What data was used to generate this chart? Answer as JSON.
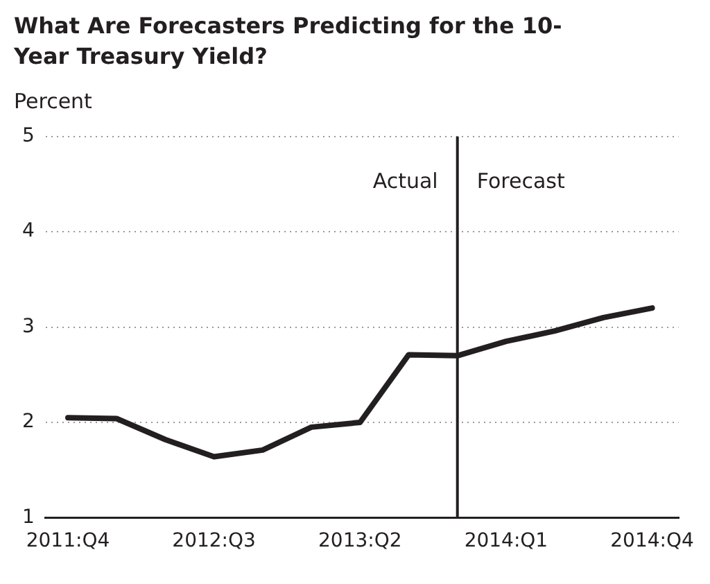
{
  "chart_data": {
    "type": "line",
    "title": "What Are Forecasters Predicting for the 10-Year Treasury Yield?",
    "ylabel": "Percent",
    "x": [
      "2011-10",
      "2012-01",
      "2012-04",
      "2012-07",
      "2012-10",
      "2013-01",
      "2013-04",
      "2013-07",
      "2013-10",
      "2014-01",
      "2014-04",
      "2014-07",
      "2014-10"
    ],
    "series": [
      {
        "color": "#231f20",
        "values": [
          2.05,
          2.04,
          1.82,
          1.64,
          1.71,
          1.95,
          2.0,
          2.71,
          2.7,
          2.85,
          2.96,
          3.1,
          3.2
        ]
      }
    ],
    "xlim": [
      "2011-08-20",
      "2014-11-20"
    ],
    "xticks": [
      {
        "value": "2011-10",
        "label": "2011:Q4"
      },
      {
        "value": "2012-07",
        "label": "2012:Q3"
      },
      {
        "value": "2013-04",
        "label": "2013:Q2"
      },
      {
        "value": "2014-01",
        "label": "2014:Q1"
      },
      {
        "value": "2014-10",
        "label": "2014:Q4"
      }
    ],
    "ylim": [
      1,
      5
    ],
    "yticks": [
      1,
      2,
      3,
      4,
      5
    ],
    "grid": "y",
    "legend": false,
    "marker": "none",
    "line_style": "solid",
    "ref_lines": [
      {
        "axis": "x",
        "value": "2013-10",
        "color": "#231f20"
      }
    ],
    "annotations": [
      "Actual",
      "Forecast"
    ]
  }
}
